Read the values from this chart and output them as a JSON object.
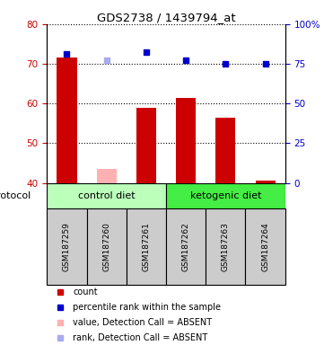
{
  "title": "GDS2738 / 1439794_at",
  "samples": [
    "GSM187259",
    "GSM187260",
    "GSM187261",
    "GSM187262",
    "GSM187263",
    "GSM187264"
  ],
  "bar_values": [
    71.5,
    null,
    59.0,
    61.5,
    56.5,
    40.5
  ],
  "bar_absent_values": [
    null,
    43.5,
    null,
    null,
    null,
    null
  ],
  "bar_bottom": 40,
  "dot_values": [
    72.5,
    null,
    73.0,
    71.0,
    70.0,
    70.0
  ],
  "dot_absent_values": [
    null,
    71.0,
    null,
    null,
    null,
    null
  ],
  "bar_color": "#cc0000",
  "bar_absent_color": "#ffb0b0",
  "dot_color": "#0000cc",
  "dot_absent_color": "#aaaaee",
  "ylim_left": [
    40,
    80
  ],
  "ylim_right": [
    0,
    100
  ],
  "yticks_left": [
    40,
    50,
    60,
    70,
    80
  ],
  "yticks_right": [
    0,
    25,
    50,
    75,
    100
  ],
  "ytick_labels_right": [
    "0",
    "25",
    "50",
    "75",
    "100%"
  ],
  "groups": [
    {
      "label": "control diet",
      "indices": [
        0,
        1,
        2
      ],
      "color": "#bbffbb"
    },
    {
      "label": "ketogenic diet",
      "indices": [
        3,
        4,
        5
      ],
      "color": "#44ee44"
    }
  ],
  "protocol_label": "protocol",
  "legend_items": [
    {
      "color": "#cc0000",
      "label": "count"
    },
    {
      "color": "#0000cc",
      "label": "percentile rank within the sample"
    },
    {
      "color": "#ffb0b0",
      "label": "value, Detection Call = ABSENT"
    },
    {
      "color": "#aaaaee",
      "label": "rank, Detection Call = ABSENT"
    }
  ],
  "bg_color": "#ffffff",
  "label_color_left": "#cc0000",
  "label_color_right": "#0000cc",
  "sample_box_color": "#cccccc",
  "bar_width": 0.5
}
